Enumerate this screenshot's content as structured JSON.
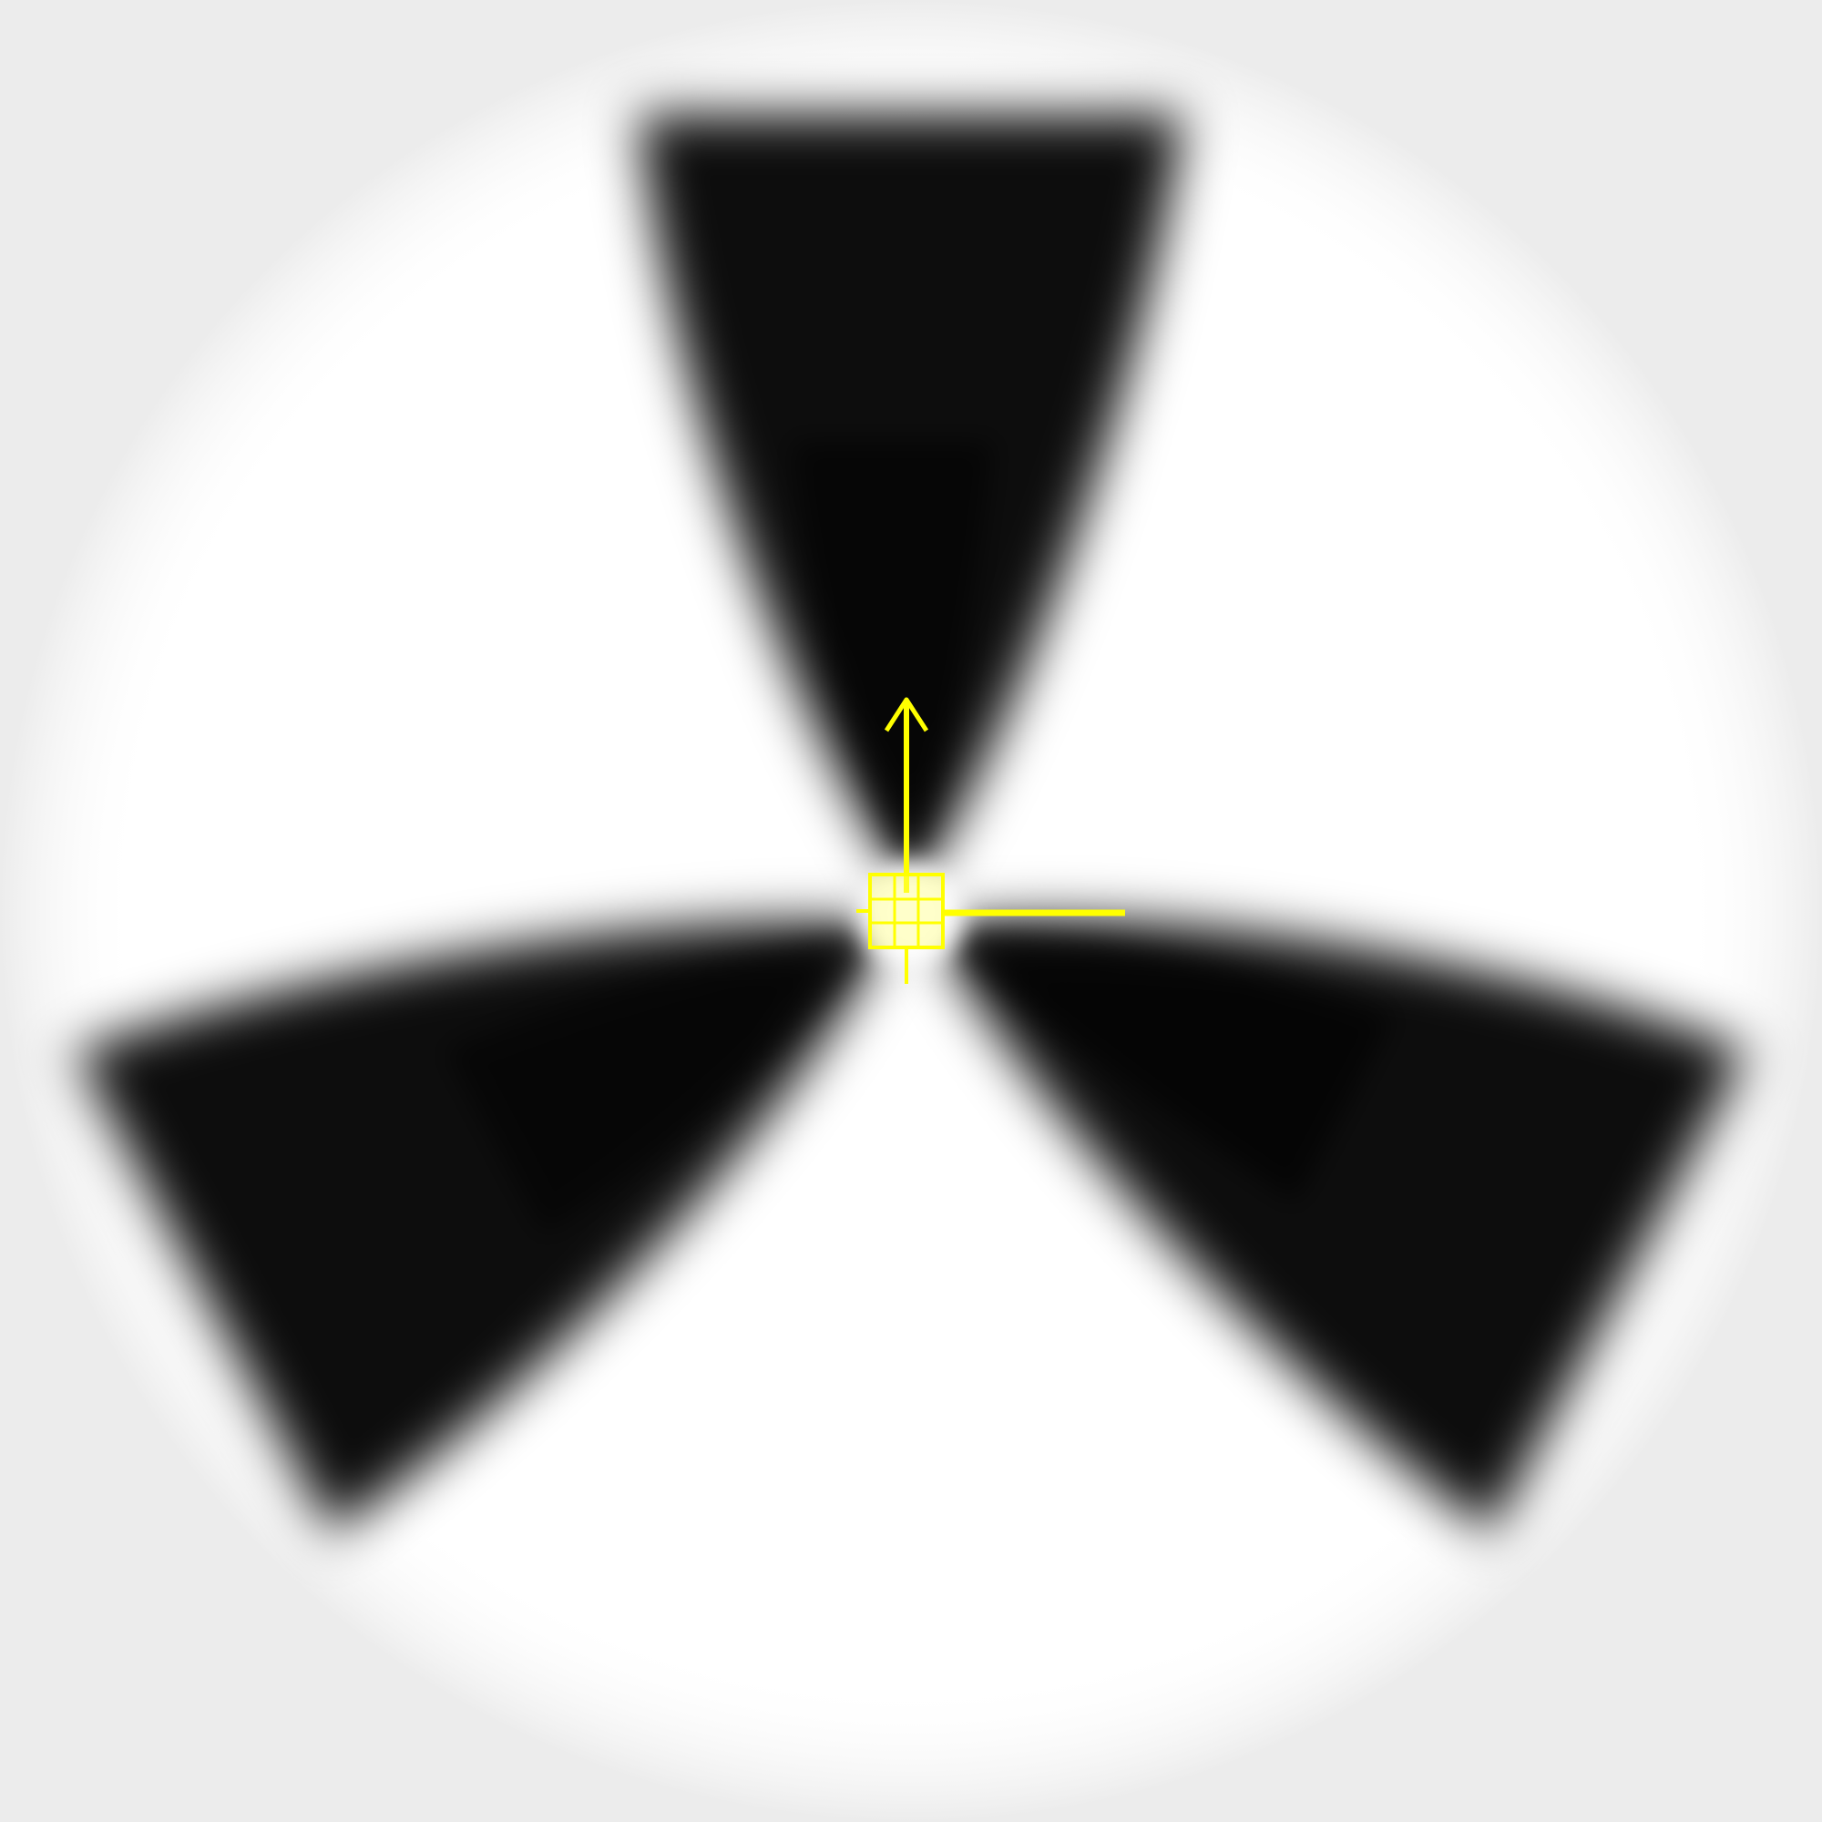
{
  "viewport": {
    "background_color": "#ffffff",
    "vignette_color": "#f2f2f2"
  },
  "object": {
    "kind": "three-blade-propeller",
    "blade_count": 3,
    "blade_color": "#000000",
    "blade_shading": "soft-gradient"
  },
  "gizmo": {
    "type": "transform-manipulator",
    "color": "#ffff00",
    "axes": [
      "y-axis-arrow",
      "x-axis-line"
    ],
    "center_handle": "grid-square"
  }
}
